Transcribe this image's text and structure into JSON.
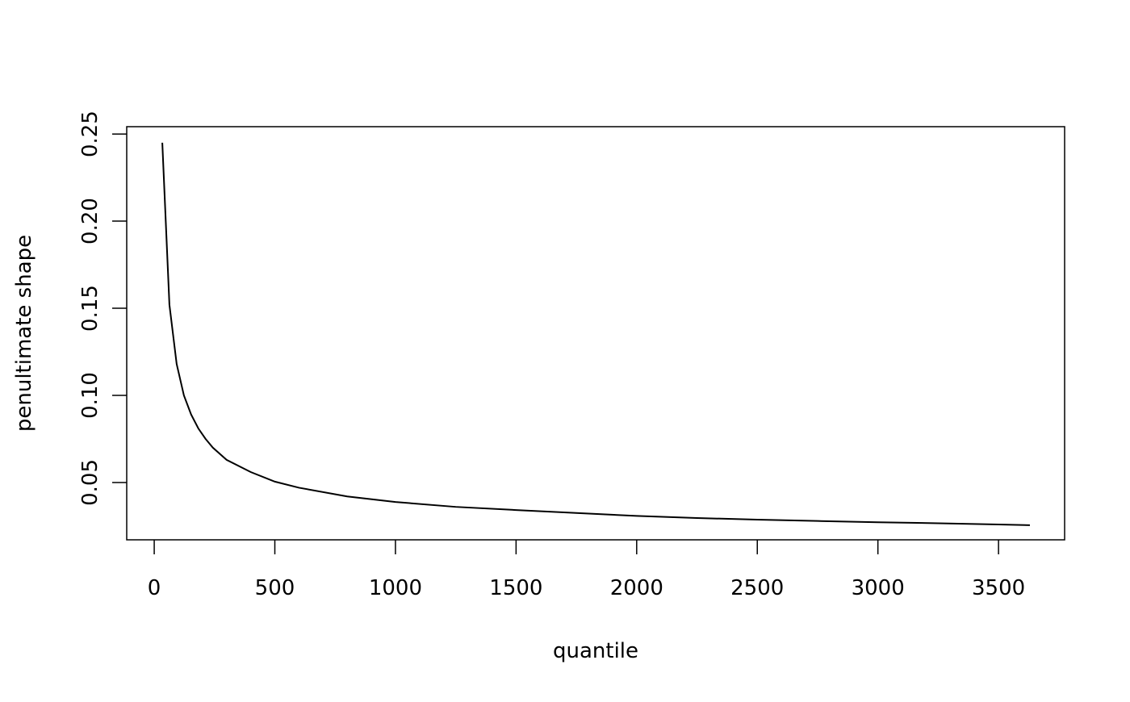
{
  "chart_data": {
    "type": "line",
    "x_label": "quantile",
    "y_label": "penultimate shape",
    "x": [
      33.5,
      63,
      93,
      123,
      153,
      183,
      213,
      243,
      300,
      400,
      500,
      600,
      800,
      1000,
      1250,
      1500,
      1750,
      2000,
      2250,
      2500,
      2750,
      3000,
      3250,
      3500,
      3630
    ],
    "series": [
      {
        "name": "penultimate shape",
        "color": "#000000",
        "values": [
          0.245,
          0.152,
          0.118,
          0.1,
          0.089,
          0.081,
          0.075,
          0.07,
          0.063,
          0.056,
          0.0505,
          0.047,
          0.042,
          0.0388,
          0.036,
          0.0342,
          0.0325,
          0.0308,
          0.0296,
          0.0287,
          0.0279,
          0.0272,
          0.0266,
          0.0259,
          0.0255
        ]
      }
    ],
    "xlim": [
      -114,
      3774
    ],
    "ylim": [
      0.0171,
      0.2542
    ],
    "xticks": [
      0,
      500,
      1000,
      1500,
      2000,
      2500,
      3000,
      3500
    ],
    "yticks": [
      0.05,
      {
        "value": 0.1,
        "label": "0.10"
      },
      0.15,
      {
        "value": 0.2,
        "label": "0.20"
      },
      0.25
    ]
  }
}
